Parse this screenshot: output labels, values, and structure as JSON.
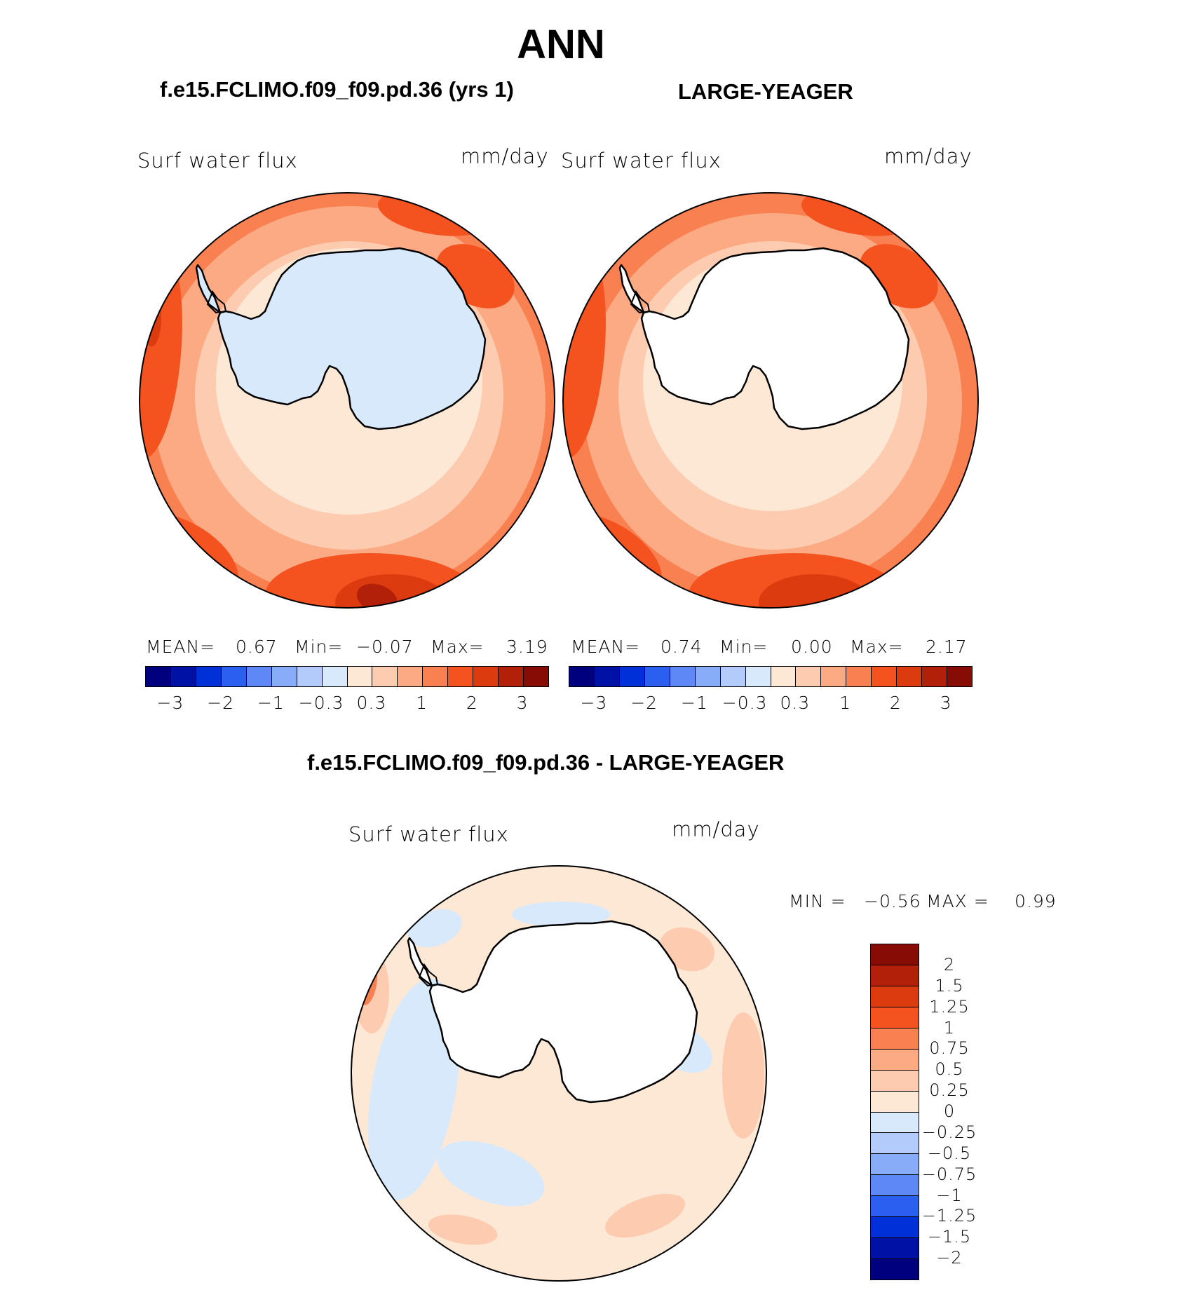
{
  "season": "ANN",
  "test_case": "f.e15.FCLIMO.f09_f09.pd.36 (yrs 1)",
  "obs_case": "LARGE-YEAGER",
  "diff_title": "f.e15.FCLIMO.f09_f09.pd.36 - LARGE-YEAGER",
  "panels": [
    {
      "variable": "Surf  water flux",
      "units": "mm/day",
      "mean_label": "MEAN=",
      "mean": "0.67",
      "min_label": "Min=",
      "min": "−0.07",
      "max_label": "Max=",
      "max": "3.19",
      "land_fill": "#d7e9fb"
    },
    {
      "variable": "Surf  water flux",
      "units": "mm/day",
      "mean_label": "MEAN=",
      "mean": "0.74",
      "min_label": "Min=",
      "min": "0.00",
      "max_label": "Max=",
      "max": "2.17",
      "land_fill": "#ffffff"
    }
  ],
  "diff_panel": {
    "variable": "Surf  water flux",
    "units": "mm/day",
    "min_label": "MIN =",
    "min": "−0.56",
    "max_label": "MAX =",
    "max": "0.99"
  },
  "main_colorbar": {
    "colors": [
      "#00007f",
      "#0012a6",
      "#0030d8",
      "#2b5ff0",
      "#5d88f5",
      "#89acf8",
      "#b3cbfa",
      "#d7e9fb",
      "#fde8d6",
      "#fdccb0",
      "#fbaa83",
      "#f98051",
      "#f4531f",
      "#dc3a0f",
      "#b32009",
      "#860c05"
    ],
    "labels": [
      "−3",
      "−2",
      "−1",
      "−0.3",
      "0.3",
      "1",
      "2",
      "3"
    ]
  },
  "diff_colorbar": {
    "colors": [
      "#860c05",
      "#b32009",
      "#dc3a0f",
      "#f4531f",
      "#f98051",
      "#fbaa83",
      "#fdccb0",
      "#fde8d6",
      "#d7e9fb",
      "#b3cbfa",
      "#89acf8",
      "#5d88f5",
      "#2b5ff0",
      "#0030d8",
      "#0012a6",
      "#00007f"
    ],
    "labels": [
      "2",
      "1.5",
      "1.25",
      "1",
      "0.75",
      "0.5",
      "0.25",
      "0",
      "−0.25",
      "−0.5",
      "−0.75",
      "−1",
      "−1.25",
      "−1.5",
      "−2"
    ]
  },
  "map_colors": {
    "c1": "#fde8d6",
    "c2": "#fdccb0",
    "c3": "#fbaa83",
    "c4": "#f98051",
    "c5": "#f4531f",
    "c6": "#dc3a0f",
    "c7": "#b32009",
    "cneg": "#d7e9fb"
  }
}
